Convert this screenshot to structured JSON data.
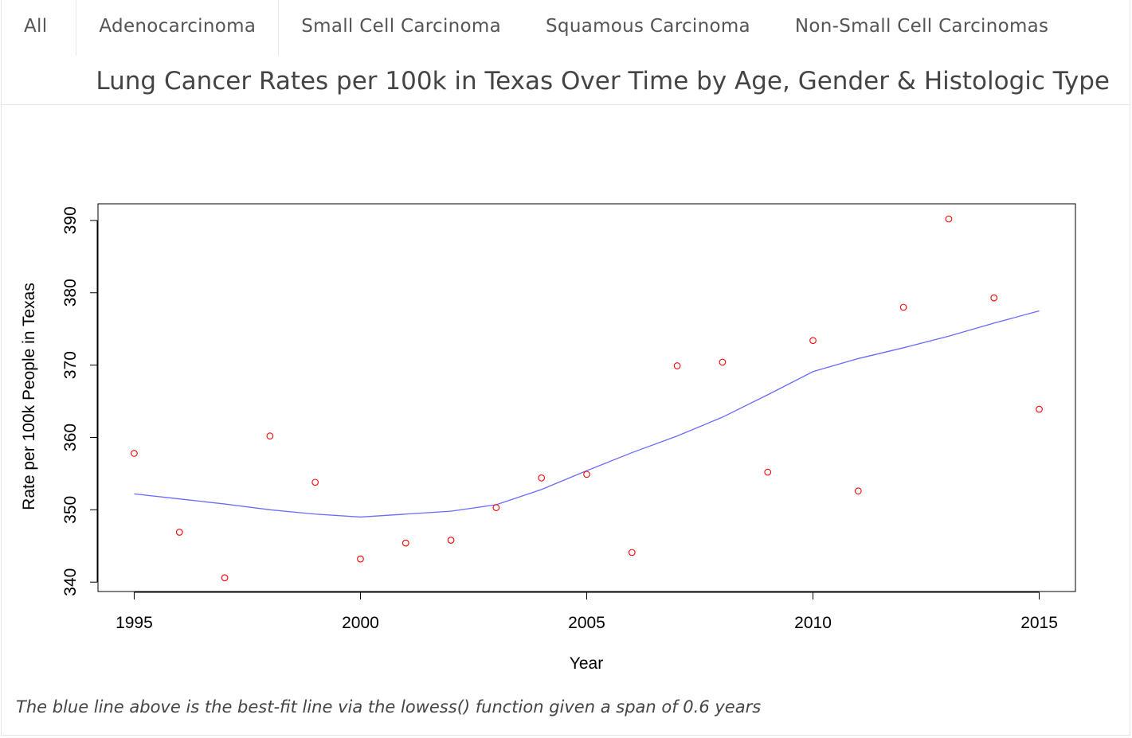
{
  "tabs": [
    {
      "label": "All",
      "active": true
    },
    {
      "label": "Adenocarcinoma",
      "active": false
    },
    {
      "label": "Small Cell Carcinoma",
      "active": false
    },
    {
      "label": "Squamous Carcinoma",
      "active": false
    },
    {
      "label": "Non-Small Cell Carcinomas",
      "active": false
    }
  ],
  "caption": "The blue line above is the best-fit line via the lowess() function given a span of 0.6 years",
  "chart_data": {
    "type": "scatter",
    "title": "Lung Cancer Rates per 100k in Texas Over Time by Age, Gender & Histologic Type",
    "xlabel": "Year",
    "ylabel": "Rate per 100k People in Texas",
    "xlim": [
      1994.2,
      2015.8
    ],
    "ylim": [
      338.7,
      392.3
    ],
    "xticks": [
      1995,
      2000,
      2005,
      2010,
      2015
    ],
    "yticks": [
      340,
      350,
      360,
      370,
      380,
      390
    ],
    "grid": false,
    "legend": "none",
    "point_color": "#ff0000",
    "line_color": "#6a6aff",
    "series": [
      {
        "kind": "points",
        "x": [
          1995,
          1996,
          1997,
          1998,
          1999,
          2000,
          2001,
          2002,
          2003,
          2004,
          2005,
          2006,
          2007,
          2008,
          2009,
          2010,
          2011,
          2012,
          2013,
          2014,
          2015
        ],
        "y": [
          357.8,
          346.9,
          340.6,
          360.2,
          353.8,
          343.2,
          345.4,
          345.8,
          350.3,
          354.4,
          354.9,
          344.1,
          369.9,
          370.4,
          355.2,
          373.4,
          352.6,
          378.0,
          390.2,
          379.3,
          363.9
        ]
      },
      {
        "kind": "line",
        "x": [
          1995,
          1996,
          1997,
          1998,
          1999,
          2000,
          2001,
          2002,
          2003,
          2004,
          2005,
          2006,
          2007,
          2008,
          2009,
          2010,
          2011,
          2012,
          2013,
          2014,
          2015
        ],
        "y": [
          352.2,
          351.5,
          350.8,
          350.0,
          349.4,
          349.0,
          349.4,
          349.8,
          350.7,
          352.8,
          355.4,
          357.9,
          360.2,
          362.8,
          365.9,
          369.1,
          370.9,
          372.4,
          374.0,
          375.8,
          377.5
        ]
      }
    ]
  }
}
